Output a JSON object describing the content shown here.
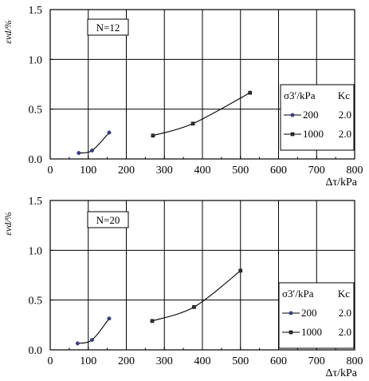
{
  "chart_data": [
    {
      "type": "line",
      "annotation": "N=12",
      "xlabel": "Δτ/kPa",
      "ylabel": "εvd/%",
      "xlim": [
        0,
        800
      ],
      "ylim": [
        0,
        1.5
      ],
      "xticks": [
        "0",
        "100",
        "200",
        "300",
        "400",
        "500",
        "600",
        "700",
        "800"
      ],
      "yticks": [
        "0.0",
        "0.5",
        "1.0",
        "1.5"
      ],
      "grid": true,
      "legend": {
        "placement": "right",
        "header_stress": "σ3′/kPa",
        "header_k": "Kc",
        "entries": [
          {
            "stress": "200",
            "k": "2.0",
            "marker": "circle"
          },
          {
            "stress": "1000",
            "k": "2.0",
            "marker": "square"
          }
        ]
      },
      "series": [
        {
          "marker": "circle",
          "x": [
            75,
            110,
            155
          ],
          "y": [
            0.06,
            0.085,
            0.265
          ]
        },
        {
          "marker": "square",
          "x": [
            270,
            375,
            525
          ],
          "y": [
            0.235,
            0.355,
            0.665
          ]
        }
      ]
    },
    {
      "type": "line",
      "annotation": "N=20",
      "xlabel": "Δτ/kPa",
      "ylabel": "εvd/%",
      "xlim": [
        0,
        800
      ],
      "ylim": [
        0,
        1.5
      ],
      "xticks": [
        "0",
        "100",
        "200",
        "300",
        "400",
        "500",
        "600",
        "700",
        "800"
      ],
      "yticks": [
        "0.0",
        "0.5",
        "1.0",
        "1.5"
      ],
      "grid": true,
      "legend": {
        "placement": "bottom-right",
        "header_stress": "σ3′/kPa",
        "header_k": "Kc",
        "entries": [
          {
            "stress": "200",
            "k": "2.0",
            "marker": "circle"
          },
          {
            "stress": "1000",
            "k": "2.0",
            "marker": "square"
          }
        ]
      },
      "series": [
        {
          "marker": "circle",
          "x": [
            72,
            110,
            155
          ],
          "y": [
            0.065,
            0.1,
            0.315
          ]
        },
        {
          "marker": "square",
          "x": [
            268,
            378,
            500
          ],
          "y": [
            0.29,
            0.43,
            0.795
          ]
        }
      ]
    }
  ]
}
